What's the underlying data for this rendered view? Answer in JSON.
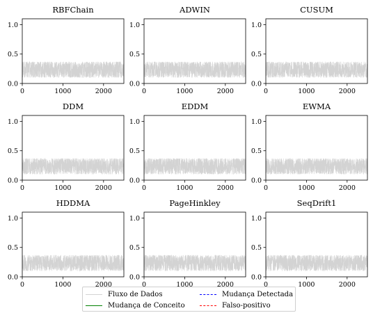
{
  "chart_data": [
    {
      "type": "line",
      "title": "RBFChain",
      "xlim": [
        0,
        2500
      ],
      "ylim": [
        0,
        1.1
      ],
      "xticks": [
        0,
        1000,
        2000
      ],
      "yticks": [
        0.0,
        0.5,
        1.0
      ],
      "xtick_labels": [
        "0",
        "1000",
        "2000"
      ],
      "ytick_labels": [
        "0.0",
        "0.5",
        "1.0"
      ],
      "series": [
        {
          "name": "Fluxo de Dados",
          "value_range": [
            0.1,
            0.37
          ],
          "mean": 0.24,
          "n_points": 2500
        }
      ]
    },
    {
      "type": "line",
      "title": "ADWIN",
      "xlim": [
        0,
        2500
      ],
      "ylim": [
        0,
        1.1
      ],
      "xticks": [
        0,
        1000,
        2000
      ],
      "yticks": [
        0.0,
        0.5,
        1.0
      ],
      "xtick_labels": [
        "0",
        "1000",
        "2000"
      ],
      "ytick_labels": [
        "0.0",
        "0.5",
        "1.0"
      ],
      "series": [
        {
          "name": "Fluxo de Dados",
          "value_range": [
            0.1,
            0.37
          ],
          "mean": 0.24,
          "n_points": 2500
        }
      ]
    },
    {
      "type": "line",
      "title": "CUSUM",
      "xlim": [
        0,
        2500
      ],
      "ylim": [
        0,
        1.1
      ],
      "xticks": [
        0,
        1000,
        2000
      ],
      "yticks": [
        0.0,
        0.5,
        1.0
      ],
      "xtick_labels": [
        "0",
        "1000",
        "2000"
      ],
      "ytick_labels": [
        "0.0",
        "0.5",
        "1.0"
      ],
      "series": [
        {
          "name": "Fluxo de Dados",
          "value_range": [
            0.1,
            0.37
          ],
          "mean": 0.24,
          "n_points": 2500
        }
      ]
    },
    {
      "type": "line",
      "title": "DDM",
      "xlim": [
        0,
        2500
      ],
      "ylim": [
        0,
        1.1
      ],
      "xticks": [
        0,
        1000,
        2000
      ],
      "yticks": [
        0.0,
        0.5,
        1.0
      ],
      "xtick_labels": [
        "0",
        "1000",
        "2000"
      ],
      "ytick_labels": [
        "0.0",
        "0.5",
        "1.0"
      ],
      "series": [
        {
          "name": "Fluxo de Dados",
          "value_range": [
            0.1,
            0.37
          ],
          "mean": 0.24,
          "n_points": 2500
        }
      ]
    },
    {
      "type": "line",
      "title": "EDDM",
      "xlim": [
        0,
        2500
      ],
      "ylim": [
        0,
        1.1
      ],
      "xticks": [
        0,
        1000,
        2000
      ],
      "yticks": [
        0.0,
        0.5,
        1.0
      ],
      "xtick_labels": [
        "0",
        "1000",
        "2000"
      ],
      "ytick_labels": [
        "0.0",
        "0.5",
        "1.0"
      ],
      "series": [
        {
          "name": "Fluxo de Dados",
          "value_range": [
            0.1,
            0.37
          ],
          "mean": 0.24,
          "n_points": 2500
        }
      ]
    },
    {
      "type": "line",
      "title": "EWMA",
      "xlim": [
        0,
        2500
      ],
      "ylim": [
        0,
        1.1
      ],
      "xticks": [
        0,
        1000,
        2000
      ],
      "yticks": [
        0.0,
        0.5,
        1.0
      ],
      "xtick_labels": [
        "0",
        "1000",
        "2000"
      ],
      "ytick_labels": [
        "0.0",
        "0.5",
        "1.0"
      ],
      "series": [
        {
          "name": "Fluxo de Dados",
          "value_range": [
            0.1,
            0.37
          ],
          "mean": 0.24,
          "n_points": 2500
        }
      ]
    },
    {
      "type": "line",
      "title": "HDDMA",
      "xlim": [
        0,
        2500
      ],
      "ylim": [
        0,
        1.1
      ],
      "xticks": [
        0,
        1000,
        2000
      ],
      "yticks": [
        0.0,
        0.5,
        1.0
      ],
      "xtick_labels": [
        "0",
        "1000",
        "2000"
      ],
      "ytick_labels": [
        "0.0",
        "0.5",
        "1.0"
      ],
      "series": [
        {
          "name": "Fluxo de Dados",
          "value_range": [
            0.1,
            0.37
          ],
          "mean": 0.24,
          "n_points": 2500
        }
      ]
    },
    {
      "type": "line",
      "title": "PageHinkley",
      "xlim": [
        0,
        2500
      ],
      "ylim": [
        0,
        1.1
      ],
      "xticks": [
        0,
        1000,
        2000
      ],
      "yticks": [
        0.0,
        0.5,
        1.0
      ],
      "xtick_labels": [
        "0",
        "1000",
        "2000"
      ],
      "ytick_labels": [
        "0.0",
        "0.5",
        "1.0"
      ],
      "series": [
        {
          "name": "Fluxo de Dados",
          "value_range": [
            0.1,
            0.37
          ],
          "mean": 0.24,
          "n_points": 2500
        }
      ]
    },
    {
      "type": "line",
      "title": "SeqDrift1",
      "xlim": [
        0,
        2500
      ],
      "ylim": [
        0,
        1.1
      ],
      "xticks": [
        0,
        1000,
        2000
      ],
      "yticks": [
        0.0,
        0.5,
        1.0
      ],
      "xtick_labels": [
        "0",
        "1000",
        "2000"
      ],
      "ytick_labels": [
        "0.0",
        "0.5",
        "1.0"
      ],
      "series": [
        {
          "name": "Fluxo de Dados",
          "value_range": [
            0.1,
            0.37
          ],
          "mean": 0.24,
          "n_points": 2500
        }
      ]
    }
  ],
  "legend": {
    "placement": "bottom-center",
    "items": [
      {
        "label": "Fluxo de Dados",
        "color": "#d3d3d3",
        "style": "solid"
      },
      {
        "label": "Mudança Detectada",
        "color": "#0000ff",
        "style": "dashed"
      },
      {
        "label": "Mudança de Conceito",
        "color": "#008000",
        "style": "solid"
      },
      {
        "label": "Falso-positivo",
        "color": "#ff0000",
        "style": "dashed"
      }
    ]
  },
  "colors": {
    "stream": "#d3d3d3",
    "axis": "#000000",
    "background": "#ffffff"
  }
}
